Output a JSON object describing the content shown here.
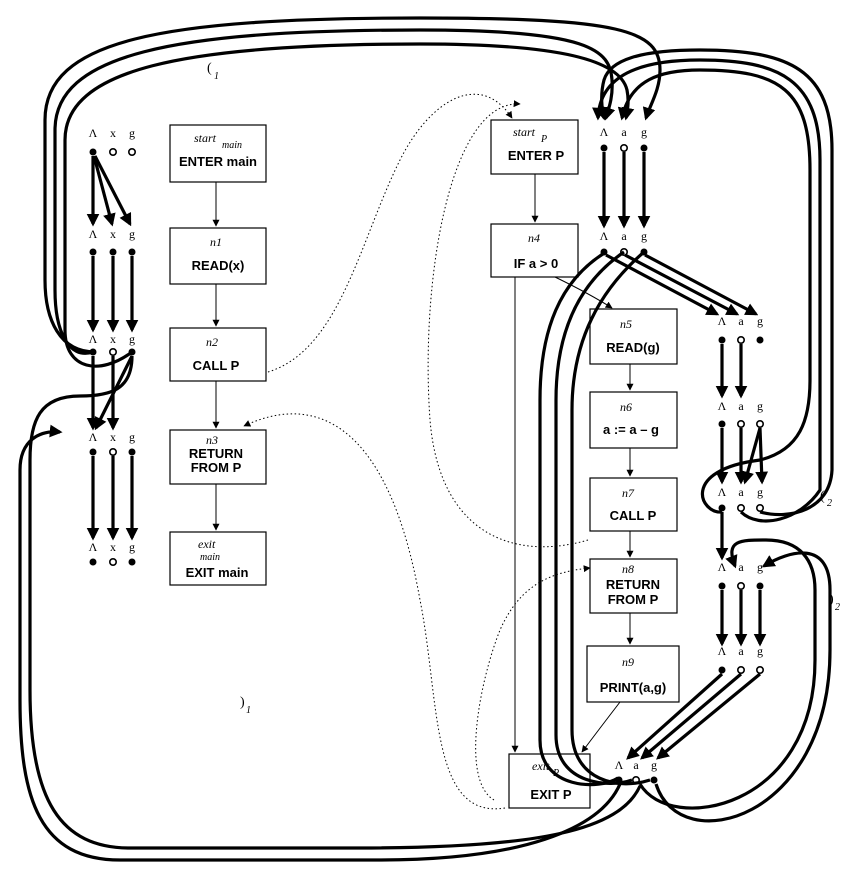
{
  "colors": {
    "ink": "#000000",
    "background": "#ffffff"
  },
  "symbols": {
    "lambda": "Λ",
    "x": "x",
    "a": "a",
    "g": "g"
  },
  "nodes": {
    "start_main": {
      "id": "start",
      "id_sub": "main",
      "label": "ENTER main"
    },
    "n1": {
      "id": "n1",
      "label": "READ(x)"
    },
    "n2": {
      "id": "n2",
      "label": "CALL P"
    },
    "n3": {
      "id": "n3",
      "label_line1": "RETURN",
      "label_line2": "FROM P"
    },
    "exit_main": {
      "id": "exit",
      "id_sub": "main",
      "label": "EXIT main"
    },
    "start_p": {
      "id": "start",
      "id_sub": "P",
      "label": "ENTER P"
    },
    "n4": {
      "id": "n4",
      "label": "IF a > 0"
    },
    "n5": {
      "id": "n5",
      "label": "READ(g)"
    },
    "n6": {
      "id": "n6",
      "label": "a := a – g"
    },
    "n7": {
      "id": "n7",
      "label": "CALL P"
    },
    "n8": {
      "id": "n8",
      "label_line1": "RETURN",
      "label_line2": "FROM P"
    },
    "n9": {
      "id": "n9",
      "label": "PRINT(a,g)"
    },
    "exit_p": {
      "id": "exit",
      "id_sub": "P",
      "label": "EXIT P"
    }
  },
  "call_labels": {
    "open_1": {
      "paren": "(",
      "sub": "1"
    },
    "close_1": {
      "paren": ")",
      "sub": "1"
    },
    "open_2": {
      "paren": "(",
      "sub": "2"
    },
    "close_2": {
      "paren": ")",
      "sub": "2"
    }
  }
}
